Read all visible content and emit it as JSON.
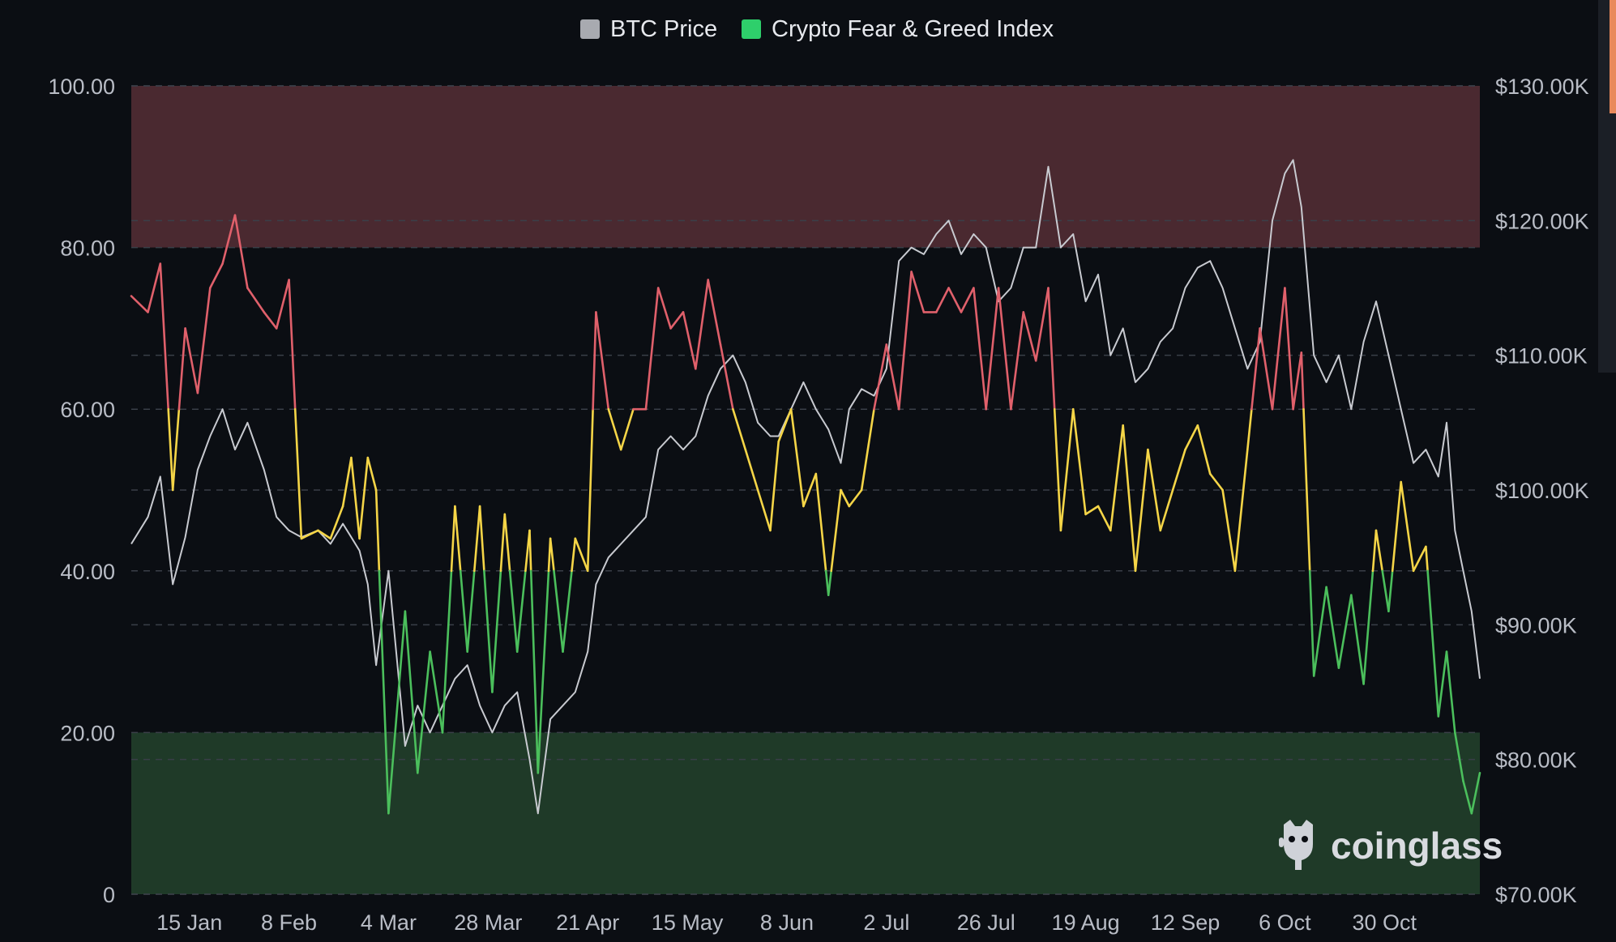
{
  "colors": {
    "background": "#0b0e13",
    "btc_line": "#c8cad0",
    "greed_red": "#e0606b",
    "neutral_yellow": "#f5d547",
    "fear_green": "#4bbf5c",
    "greed_band": "#4a2930",
    "fear_band": "#1f3a28",
    "legend_btc": "#a8aab0",
    "legend_fgi": "#2ecf6b"
  },
  "legend": {
    "btc_label": "BTC Price",
    "fgi_label": "Crypto Fear & Greed Index"
  },
  "watermark": {
    "text": "coinglass",
    "icon": "coinglass-logo-icon"
  },
  "chart_data": {
    "type": "line",
    "legend_position": "top-center",
    "grid": true,
    "x_ticks": [
      "15 Jan",
      "8 Feb",
      "4 Mar",
      "28 Mar",
      "21 Apr",
      "15 May",
      "8 Jun",
      "2 Jul",
      "26 Jul",
      "19 Aug",
      "12 Sep",
      "6 Oct",
      "30 Oct"
    ],
    "y_left": {
      "ticks": [
        "0",
        "20.00",
        "40.00",
        "60.00",
        "80.00",
        "100.00"
      ],
      "range": [
        0,
        100
      ]
    },
    "y_right": {
      "ticks": [
        "$70.00K",
        "$80.00K",
        "$90.00K",
        "$100.00K",
        "$110.00K",
        "$120.00K",
        "$130.00K"
      ],
      "range": [
        70000,
        130000
      ]
    },
    "bands": [
      {
        "from": 80,
        "to": 100,
        "meaning": "extreme greed"
      },
      {
        "from": 0,
        "to": 20,
        "meaning": "extreme fear"
      }
    ],
    "color_thresholds": [
      {
        "below": 40,
        "color": "fear_green"
      },
      {
        "below": 60,
        "color": "neutral_yellow"
      },
      {
        "below": 101,
        "color": "greed_red"
      }
    ],
    "series": [
      {
        "name": "Crypto Fear & Greed Index",
        "axis": "left",
        "x": [
          "2025-01-01",
          "2025-01-05",
          "2025-01-08",
          "2025-01-11",
          "2025-01-14",
          "2025-01-17",
          "2025-01-20",
          "2025-01-23",
          "2025-01-26",
          "2025-01-29",
          "2025-02-02",
          "2025-02-05",
          "2025-02-08",
          "2025-02-11",
          "2025-02-15",
          "2025-02-18",
          "2025-02-21",
          "2025-02-23",
          "2025-02-25",
          "2025-02-27",
          "2025-03-01",
          "2025-03-04",
          "2025-03-08",
          "2025-03-11",
          "2025-03-14",
          "2025-03-17",
          "2025-03-20",
          "2025-03-23",
          "2025-03-26",
          "2025-03-29",
          "2025-04-01",
          "2025-04-04",
          "2025-04-07",
          "2025-04-09",
          "2025-04-12",
          "2025-04-15",
          "2025-04-18",
          "2025-04-21",
          "2025-04-23",
          "2025-04-26",
          "2025-04-29",
          "2025-05-02",
          "2025-05-05",
          "2025-05-08",
          "2025-05-11",
          "2025-05-14",
          "2025-05-17",
          "2025-05-20",
          "2025-05-23",
          "2025-05-26",
          "2025-05-29",
          "2025-06-01",
          "2025-06-04",
          "2025-06-06",
          "2025-06-09",
          "2025-06-12",
          "2025-06-15",
          "2025-06-18",
          "2025-06-21",
          "2025-06-23",
          "2025-06-26",
          "2025-06-29",
          "2025-07-02",
          "2025-07-05",
          "2025-07-08",
          "2025-07-11",
          "2025-07-14",
          "2025-07-17",
          "2025-07-20",
          "2025-07-23",
          "2025-07-26",
          "2025-07-29",
          "2025-08-01",
          "2025-08-04",
          "2025-08-07",
          "2025-08-10",
          "2025-08-13",
          "2025-08-16",
          "2025-08-19",
          "2025-08-22",
          "2025-08-25",
          "2025-08-28",
          "2025-08-31",
          "2025-09-03",
          "2025-09-06",
          "2025-09-09",
          "2025-09-12",
          "2025-09-15",
          "2025-09-18",
          "2025-09-21",
          "2025-09-24",
          "2025-09-27",
          "2025-09-30",
          "2025-10-03",
          "2025-10-06",
          "2025-10-08",
          "2025-10-10",
          "2025-10-13",
          "2025-10-16",
          "2025-10-19",
          "2025-10-22",
          "2025-10-25",
          "2025-10-28",
          "2025-10-31",
          "2025-11-03",
          "2025-11-06",
          "2025-11-09",
          "2025-11-12",
          "2025-11-14",
          "2025-11-16",
          "2025-11-18",
          "2025-11-20",
          "2025-11-22"
        ],
        "values": [
          74,
          72,
          78,
          50,
          70,
          62,
          75,
          78,
          84,
          75,
          72,
          70,
          76,
          44,
          45,
          44,
          48,
          54,
          44,
          54,
          50,
          10,
          35,
          15,
          30,
          20,
          48,
          30,
          48,
          25,
          47,
          30,
          45,
          15,
          44,
          30,
          44,
          40,
          72,
          60,
          55,
          60,
          60,
          75,
          70,
          72,
          65,
          76,
          68,
          60,
          55,
          50,
          45,
          56,
          60,
          48,
          52,
          37,
          50,
          48,
          50,
          60,
          68,
          60,
          77,
          72,
          72,
          75,
          72,
          75,
          60,
          75,
          60,
          72,
          66,
          75,
          45,
          60,
          47,
          48,
          45,
          58,
          40,
          55,
          45,
          50,
          55,
          58,
          52,
          50,
          40,
          55,
          70,
          60,
          75,
          60,
          67,
          27,
          38,
          28,
          37,
          26,
          45,
          35,
          51,
          40,
          43,
          22,
          30,
          20,
          14,
          10,
          15
        ]
      },
      {
        "name": "BTC Price",
        "axis": "right",
        "x": [
          "2025-01-01",
          "2025-01-05",
          "2025-01-08",
          "2025-01-11",
          "2025-01-14",
          "2025-01-17",
          "2025-01-20",
          "2025-01-23",
          "2025-01-26",
          "2025-01-29",
          "2025-02-02",
          "2025-02-05",
          "2025-02-08",
          "2025-02-11",
          "2025-02-15",
          "2025-02-18",
          "2025-02-21",
          "2025-02-23",
          "2025-02-25",
          "2025-02-27",
          "2025-03-01",
          "2025-03-04",
          "2025-03-08",
          "2025-03-11",
          "2025-03-14",
          "2025-03-17",
          "2025-03-20",
          "2025-03-23",
          "2025-03-26",
          "2025-03-29",
          "2025-04-01",
          "2025-04-04",
          "2025-04-07",
          "2025-04-09",
          "2025-04-12",
          "2025-04-15",
          "2025-04-18",
          "2025-04-21",
          "2025-04-23",
          "2025-04-26",
          "2025-04-29",
          "2025-05-02",
          "2025-05-05",
          "2025-05-08",
          "2025-05-11",
          "2025-05-14",
          "2025-05-17",
          "2025-05-20",
          "2025-05-23",
          "2025-05-26",
          "2025-05-29",
          "2025-06-01",
          "2025-06-04",
          "2025-06-06",
          "2025-06-09",
          "2025-06-12",
          "2025-06-15",
          "2025-06-18",
          "2025-06-21",
          "2025-06-23",
          "2025-06-26",
          "2025-06-29",
          "2025-07-02",
          "2025-07-05",
          "2025-07-08",
          "2025-07-11",
          "2025-07-14",
          "2025-07-17",
          "2025-07-20",
          "2025-07-23",
          "2025-07-26",
          "2025-07-29",
          "2025-08-01",
          "2025-08-04",
          "2025-08-07",
          "2025-08-10",
          "2025-08-13",
          "2025-08-16",
          "2025-08-19",
          "2025-08-22",
          "2025-08-25",
          "2025-08-28",
          "2025-08-31",
          "2025-09-03",
          "2025-09-06",
          "2025-09-09",
          "2025-09-12",
          "2025-09-15",
          "2025-09-18",
          "2025-09-21",
          "2025-09-24",
          "2025-09-27",
          "2025-09-30",
          "2025-10-03",
          "2025-10-06",
          "2025-10-08",
          "2025-10-10",
          "2025-10-13",
          "2025-10-16",
          "2025-10-19",
          "2025-10-22",
          "2025-10-25",
          "2025-10-28",
          "2025-10-31",
          "2025-11-03",
          "2025-11-06",
          "2025-11-09",
          "2025-11-12",
          "2025-11-14",
          "2025-11-16",
          "2025-11-18",
          "2025-11-20",
          "2025-11-22"
        ],
        "values": [
          96000,
          98000,
          101000,
          93000,
          96500,
          101500,
          104000,
          106000,
          103000,
          105000,
          101500,
          98000,
          97000,
          96500,
          97000,
          96000,
          97500,
          96500,
          95500,
          93000,
          87000,
          94000,
          81000,
          84000,
          82000,
          84000,
          86000,
          87000,
          84000,
          82000,
          84000,
          85000,
          80000,
          76000,
          83000,
          84000,
          85000,
          88000,
          93000,
          95000,
          96000,
          97000,
          98000,
          103000,
          104000,
          103000,
          104000,
          107000,
          109000,
          110000,
          108000,
          105000,
          104000,
          104000,
          106000,
          108000,
          106000,
          104500,
          102000,
          106000,
          107500,
          107000,
          109000,
          117000,
          118000,
          117500,
          119000,
          120000,
          117500,
          119000,
          118000,
          114000,
          115000,
          118000,
          118000,
          124000,
          118000,
          119000,
          114000,
          116000,
          110000,
          112000,
          108000,
          109000,
          111000,
          112000,
          115000,
          116500,
          117000,
          115000,
          112000,
          109000,
          111000,
          120000,
          123500,
          124500,
          121000,
          110000,
          108000,
          110000,
          106000,
          111000,
          114000,
          110000,
          106000,
          102000,
          103000,
          101000,
          105000,
          97000,
          94000,
          91000,
          86000
        ]
      }
    ]
  }
}
